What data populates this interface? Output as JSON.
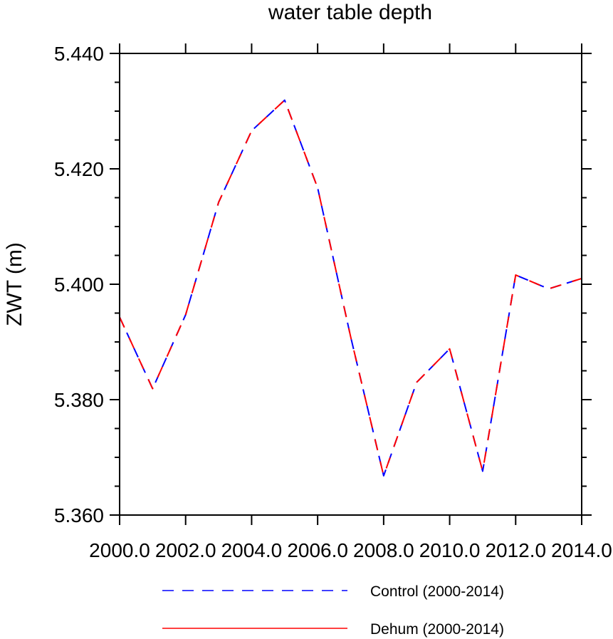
{
  "chart_data": {
    "type": "line",
    "title": "water table depth",
    "xlabel": "",
    "ylabel": "ZWT  (m)",
    "xlim": [
      2000.0,
      2014.0
    ],
    "ylim": [
      5.36,
      5.44
    ],
    "xticks": [
      2000.0,
      2002.0,
      2004.0,
      2006.0,
      2008.0,
      2010.0,
      2012.0,
      2014.0
    ],
    "xtick_labels": [
      "2000.0",
      "2002.0",
      "2004.0",
      "2006.0",
      "2008.0",
      "2010.0",
      "2012.0",
      "2014.0"
    ],
    "yticks": [
      5.36,
      5.38,
      5.4,
      5.42,
      5.44
    ],
    "ytick_labels": [
      "5.360",
      "5.380",
      "5.400",
      "5.420",
      "5.440"
    ],
    "grid": false,
    "legend_position": "bottom",
    "x": [
      2000,
      2001,
      2002,
      2003,
      2004,
      2005,
      2006,
      2007,
      2008,
      2009,
      2010,
      2011,
      2012,
      2013,
      2014
    ],
    "series": [
      {
        "name": "Control (2000-2014)",
        "color": "#0000ff",
        "style": "dashed",
        "values": [
          5.3943,
          5.3819,
          5.3947,
          5.4142,
          5.4266,
          5.4319,
          5.4167,
          5.3909,
          5.3668,
          5.383,
          5.3888,
          5.3676,
          5.4016,
          5.3992,
          5.401
        ]
      },
      {
        "name": "Dehum (2000-2014)",
        "color": "#ff0000",
        "style": "solid",
        "values": [
          5.3943,
          5.3819,
          5.3947,
          5.4142,
          5.4266,
          5.4319,
          5.4167,
          5.3909,
          5.3668,
          5.383,
          5.3888,
          5.3676,
          5.4016,
          5.3992,
          5.401
        ]
      }
    ]
  }
}
